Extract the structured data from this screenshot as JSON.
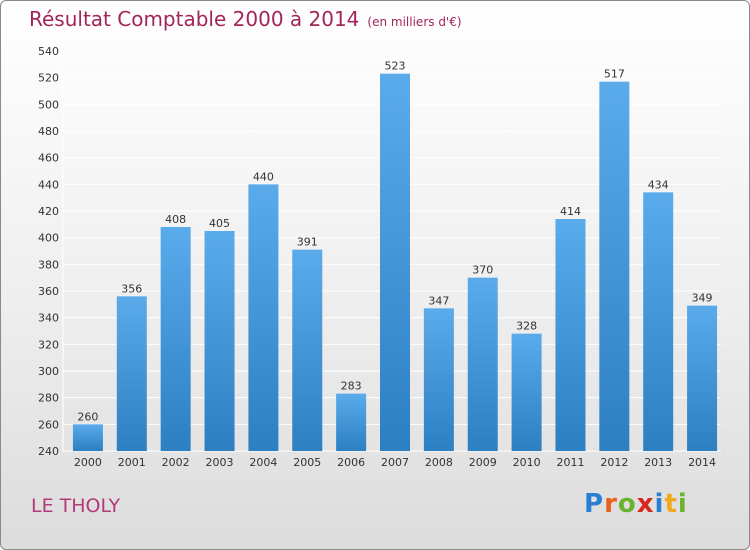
{
  "header": {
    "title": "Résultat Comptable 2000 à 2014",
    "subtitle": "(en milliers d'€)"
  },
  "footer": {
    "commune": "LE THOLY",
    "logo": "Proxiti"
  },
  "colors": {
    "bar_top": "#5aabeb",
    "bar_bottom": "#2c7fc1",
    "title": "#a2255a",
    "grid": "#ffffff"
  },
  "chart_data": {
    "type": "bar",
    "title": "Résultat Comptable 2000 à 2014",
    "subtitle": "(en milliers d'€)",
    "categories": [
      "2000",
      "2001",
      "2002",
      "2003",
      "2004",
      "2005",
      "2006",
      "2007",
      "2008",
      "2009",
      "2010",
      "2011",
      "2012",
      "2013",
      "2014"
    ],
    "values": [
      260,
      356,
      408,
      405,
      440,
      391,
      283,
      523,
      347,
      370,
      328,
      414,
      517,
      434,
      349
    ],
    "ylim": [
      240,
      540
    ],
    "yticks": [
      240,
      260,
      280,
      300,
      320,
      340,
      360,
      380,
      400,
      420,
      440,
      460,
      480,
      500,
      520,
      540
    ],
    "grid": true,
    "data_labels": true
  }
}
